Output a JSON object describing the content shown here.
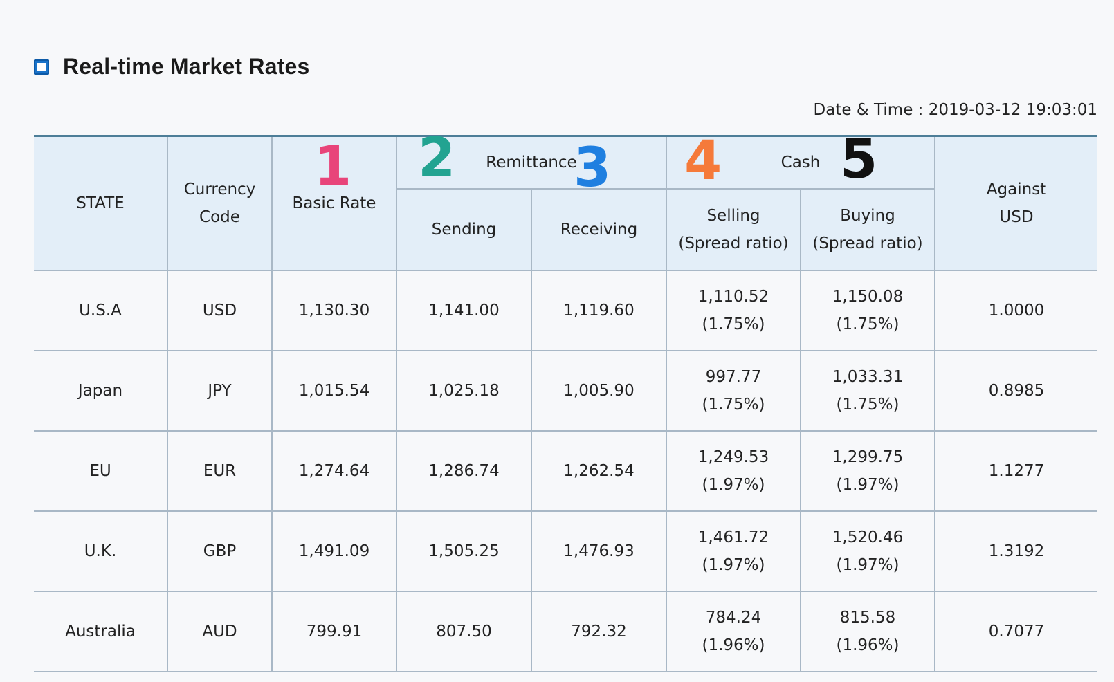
{
  "header": {
    "title": "Real-time Market Rates",
    "datetime": "Date & Time : 2019-03-12 19:03:01"
  },
  "table": {
    "columns": {
      "state": "STATE",
      "currency_line1": "Currency",
      "currency_line2": "Code",
      "basic_rate": "Basic Rate",
      "remittance": "Remittance",
      "sending": "Sending",
      "receiving": "Receiving",
      "cash": "Cash",
      "selling_line1": "Selling",
      "selling_line2": "(Spread ratio)",
      "buying_line1": "Buying",
      "buying_line2": "(Spread ratio)",
      "against_line1": "Against",
      "against_line2": "USD"
    },
    "rows": [
      {
        "state": "U.S.A",
        "code": "USD",
        "basic": "1,130.30",
        "sending": "1,141.00",
        "receiving": "1,119.60",
        "selling": "1,110.52",
        "selling_spread": "(1.75%)",
        "buying": "1,150.08",
        "buying_spread": "(1.75%)",
        "against": "1.0000"
      },
      {
        "state": "Japan",
        "code": "JPY",
        "basic": "1,015.54",
        "sending": "1,025.18",
        "receiving": "1,005.90",
        "selling": "997.77",
        "selling_spread": "(1.75%)",
        "buying": "1,033.31",
        "buying_spread": "(1.75%)",
        "against": "0.8985"
      },
      {
        "state": "EU",
        "code": "EUR",
        "basic": "1,274.64",
        "sending": "1,286.74",
        "receiving": "1,262.54",
        "selling": "1,249.53",
        "selling_spread": "(1.97%)",
        "buying": "1,299.75",
        "buying_spread": "(1.97%)",
        "against": "1.1277"
      },
      {
        "state": "U.K.",
        "code": "GBP",
        "basic": "1,491.09",
        "sending": "1,505.25",
        "receiving": "1,476.93",
        "selling": "1,461.72",
        "selling_spread": "(1.97%)",
        "buying": "1,520.46",
        "buying_spread": "(1.97%)",
        "against": "1.3192"
      },
      {
        "state": "Australia",
        "code": "AUD",
        "basic": "799.91",
        "sending": "807.50",
        "receiving": "792.32",
        "selling": "784.24",
        "selling_spread": "(1.96%)",
        "buying": "815.58",
        "buying_spread": "(1.96%)",
        "against": "0.7077"
      }
    ]
  },
  "annotations": [
    {
      "label": "1",
      "color": "#e8447a"
    },
    {
      "label": "2",
      "color": "#22a391"
    },
    {
      "label": "3",
      "color": "#1f7fe0"
    },
    {
      "label": "4",
      "color": "#f57a3a"
    },
    {
      "label": "5",
      "color": "#111111"
    }
  ],
  "colors": {
    "header_bg": "#e3eef8",
    "border": "#a9b8c6",
    "accent": "#1a73c9",
    "page_bg": "#f7f8fa"
  }
}
